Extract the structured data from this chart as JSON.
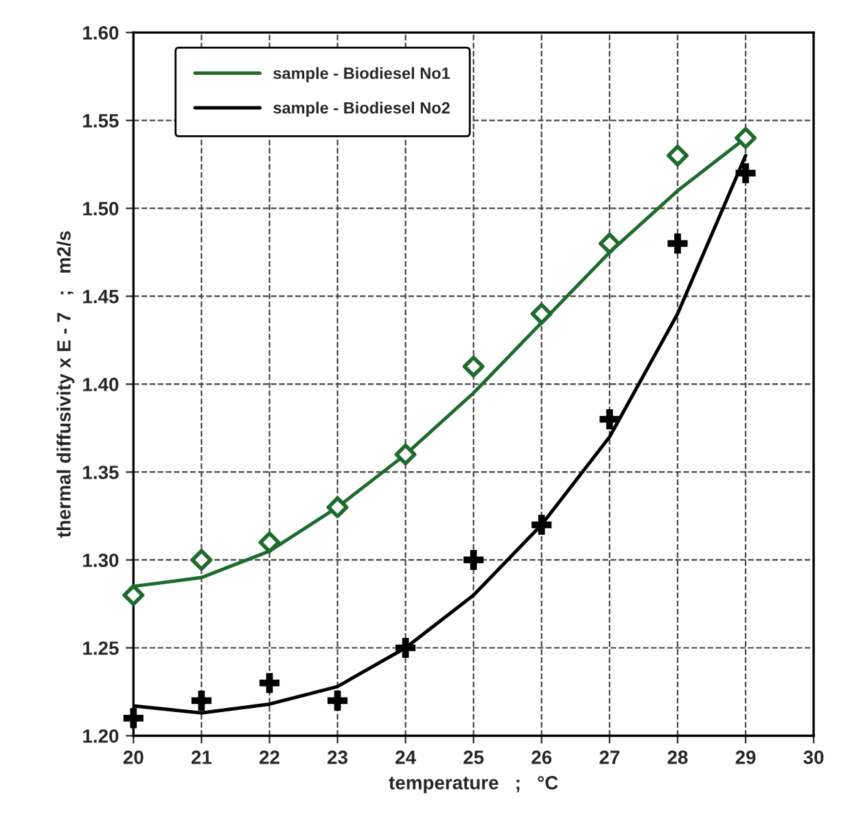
{
  "chart_data": {
    "type": "scatter",
    "xlabel": "temperature   ;   °C",
    "ylabel": "thermal diffusivity x E - 7   ;   m2/s",
    "xlim": [
      20,
      30
    ],
    "xticks": [
      20,
      21,
      22,
      23,
      24,
      25,
      26,
      27,
      28,
      29,
      30
    ],
    "ylim": [
      1.2,
      1.6
    ],
    "yticks": [
      {
        "value": 1.2,
        "label": "1.20"
      },
      {
        "value": 1.25,
        "label": "1.25"
      },
      {
        "value": 1.3,
        "label": "1.30"
      },
      {
        "value": 1.35,
        "label": "1.35"
      },
      {
        "value": 1.4,
        "label": "1.40"
      },
      {
        "value": 1.45,
        "label": "1.45"
      },
      {
        "value": 1.5,
        "label": "1.50"
      },
      {
        "value": 1.55,
        "label": "1.55"
      },
      {
        "value": 1.6,
        "label": "1.60"
      }
    ],
    "grid": true,
    "legend": "top left",
    "series": [
      {
        "type": "line",
        "name": "sample - Biodiesel No1",
        "color": "#1e6b2e",
        "line_style": "solid",
        "x": [
          20,
          21,
          22,
          23,
          24,
          25,
          26,
          27,
          28,
          29
        ],
        "values": [
          1.285,
          1.29,
          1.305,
          1.33,
          1.36,
          1.395,
          1.435,
          1.475,
          1.51,
          1.54
        ]
      },
      {
        "type": "line",
        "name": "sample - Biodiesel No2",
        "color": "#000000",
        "line_style": "solid",
        "x": [
          20,
          21,
          22,
          23,
          24,
          25,
          26,
          27,
          28,
          29
        ],
        "values": [
          1.217,
          1.213,
          1.218,
          1.228,
          1.25,
          1.28,
          1.32,
          1.37,
          1.44,
          1.53
        ]
      },
      {
        "marker": "diamond",
        "color": "#1e6b2e",
        "x": [
          20,
          21,
          22,
          23,
          24,
          25,
          26,
          27,
          28,
          29
        ],
        "values": [
          1.28,
          1.3,
          1.31,
          1.33,
          1.36,
          1.41,
          1.44,
          1.48,
          1.53,
          1.54
        ]
      },
      {
        "marker": "cross",
        "color": "#000000",
        "x": [
          20,
          21,
          22,
          23,
          24,
          25,
          26,
          27,
          28,
          29
        ],
        "values": [
          1.21,
          1.22,
          1.23,
          1.22,
          1.25,
          1.3,
          1.32,
          1.38,
          1.48,
          1.52
        ]
      }
    ]
  }
}
